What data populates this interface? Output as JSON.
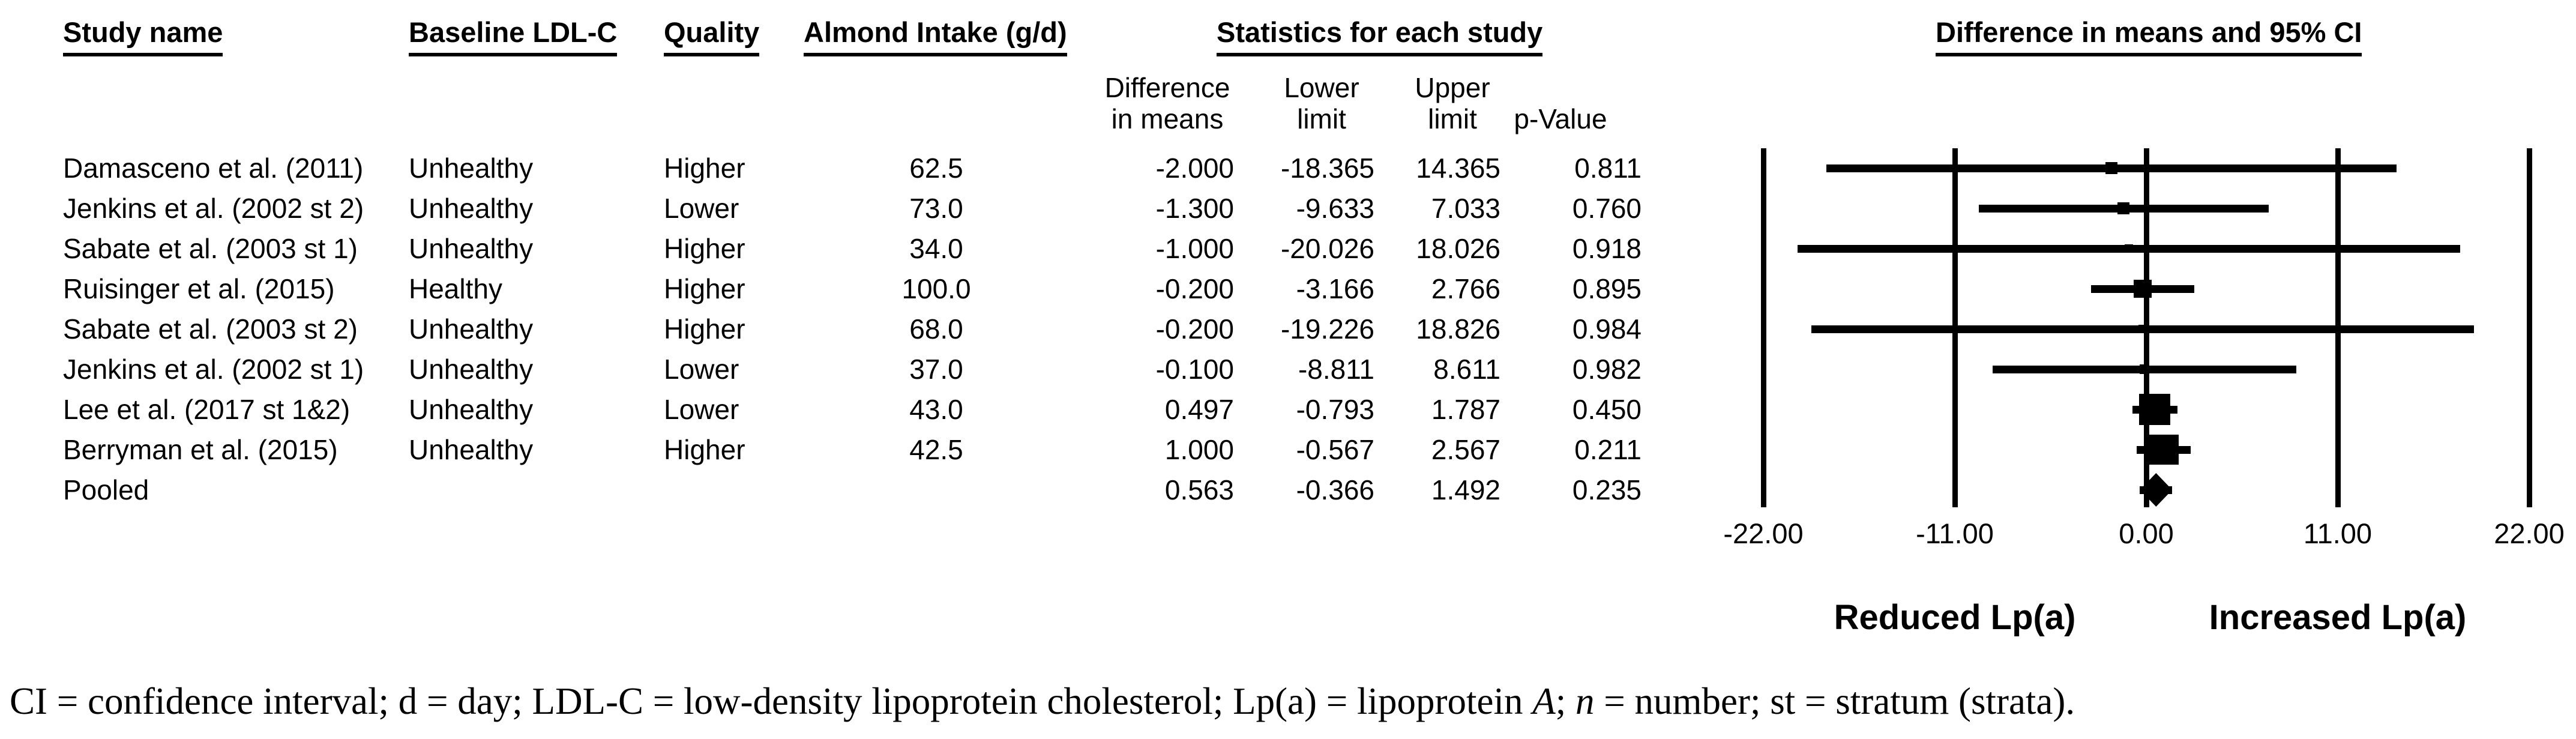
{
  "table": {
    "headers": {
      "study": "Study name",
      "baseline": "Baseline LDL-C",
      "quality": "Quality",
      "intake": "Almond Intake (g/d)",
      "stats_group": "Statistics for each study",
      "plot_title": "Difference in means and 95% CI",
      "diff_line1": "Difference",
      "diff_line2": "in means",
      "lower_line1": "Lower",
      "lower_line2": "limit",
      "upper_line1": "Upper",
      "upper_line2": "limit",
      "pvalue": "p-Value"
    },
    "rows": [
      {
        "study": "Damasceno et al. (2011)",
        "baseline": "Unhealthy",
        "quality": "Higher",
        "intake": "62.5",
        "diff": "-2.000",
        "lower": "-18.365",
        "upper": "14.365",
        "p": "0.811"
      },
      {
        "study": "Jenkins et al. (2002 st 2)",
        "baseline": "Unhealthy",
        "quality": "Lower",
        "intake": "73.0",
        "diff": "-1.300",
        "lower": "-9.633",
        "upper": "7.033",
        "p": "0.760"
      },
      {
        "study": "Sabate et al. (2003 st 1)",
        "baseline": "Unhealthy",
        "quality": "Higher",
        "intake": "34.0",
        "diff": "-1.000",
        "lower": "-20.026",
        "upper": "18.026",
        "p": "0.918"
      },
      {
        "study": "Ruisinger et al. (2015)",
        "baseline": "Healthy",
        "quality": "Higher",
        "intake": "100.0",
        "diff": "-0.200",
        "lower": "-3.166",
        "upper": "2.766",
        "p": "0.895"
      },
      {
        "study": "Sabate et al. (2003 st 2)",
        "baseline": "Unhealthy",
        "quality": "Higher",
        "intake": "68.0",
        "diff": "-0.200",
        "lower": "-19.226",
        "upper": "18.826",
        "p": "0.984"
      },
      {
        "study": "Jenkins et al. (2002 st 1)",
        "baseline": "Unhealthy",
        "quality": "Lower",
        "intake": "37.0",
        "diff": "-0.100",
        "lower": "-8.811",
        "upper": "8.611",
        "p": "0.982"
      },
      {
        "study": "Lee et al. (2017 st 1&2)",
        "baseline": "Unhealthy",
        "quality": "Lower",
        "intake": "43.0",
        "diff": "0.497",
        "lower": "-0.793",
        "upper": "1.787",
        "p": "0.450"
      },
      {
        "study": "Berryman et al. (2015)",
        "baseline": "Unhealthy",
        "quality": "Higher",
        "intake": "42.5",
        "diff": "1.000",
        "lower": "-0.567",
        "upper": "2.567",
        "p": "0.211"
      },
      {
        "study": "Pooled",
        "baseline": "",
        "quality": "",
        "intake": "",
        "diff": "0.563",
        "lower": "-0.366",
        "upper": "1.492",
        "p": "0.235"
      }
    ]
  },
  "chart_data": {
    "type": "forest",
    "title": "Difference in means and 95% CI",
    "x_axis": {
      "min": -22,
      "max": 22,
      "ticks": [
        -22,
        -11,
        0,
        11,
        22
      ],
      "tick_labels": [
        "-22.00",
        "-11.00",
        "0.00",
        "11.00",
        "22.00"
      ],
      "grid": true
    },
    "direction_label_left": "Reduced Lp(a)",
    "direction_label_right": "Increased Lp(a)",
    "marker_color": "#000000",
    "studies": [
      {
        "name": "Damasceno et al. (2011)",
        "diff": -2.0,
        "lower": -18.365,
        "upper": 14.365,
        "marker": "square",
        "marker_size": 20
      },
      {
        "name": "Jenkins et al. (2002 st 2)",
        "diff": -1.3,
        "lower": -9.633,
        "upper": 7.033,
        "marker": "square",
        "marker_size": 20
      },
      {
        "name": "Sabate et al. (2003 st 1)",
        "diff": -1.0,
        "lower": -20.026,
        "upper": 18.026,
        "marker": "square",
        "marker_size": 14
      },
      {
        "name": "Ruisinger et al. (2015)",
        "diff": -0.2,
        "lower": -3.166,
        "upper": 2.766,
        "marker": "square",
        "marker_size": 30
      },
      {
        "name": "Sabate et al. (2003 st 2)",
        "diff": -0.2,
        "lower": -19.226,
        "upper": 18.826,
        "marker": "square",
        "marker_size": 14
      },
      {
        "name": "Jenkins et al. (2002 st 1)",
        "diff": -0.1,
        "lower": -8.811,
        "upper": 8.611,
        "marker": "square",
        "marker_size": 16
      },
      {
        "name": "Lee et al. (2017 st 1&2)",
        "diff": 0.497,
        "lower": -0.793,
        "upper": 1.787,
        "marker": "square",
        "marker_size": 52
      },
      {
        "name": "Berryman et al. (2015)",
        "diff": 1.0,
        "lower": -0.567,
        "upper": 2.567,
        "marker": "square",
        "marker_size": 50
      },
      {
        "name": "Pooled",
        "diff": 0.563,
        "lower": -0.366,
        "upper": 1.492,
        "marker": "diamond",
        "marker_size": 56
      }
    ]
  },
  "footnote": {
    "part1": "CI = confidence interval; d = day; LDL-C = low-density lipoprotein cholesterol; Lp(a) = lipoprotein ",
    "em1": "A",
    "part2": "; ",
    "em2": "n",
    "part3": " = number; st = stratum (strata)."
  }
}
